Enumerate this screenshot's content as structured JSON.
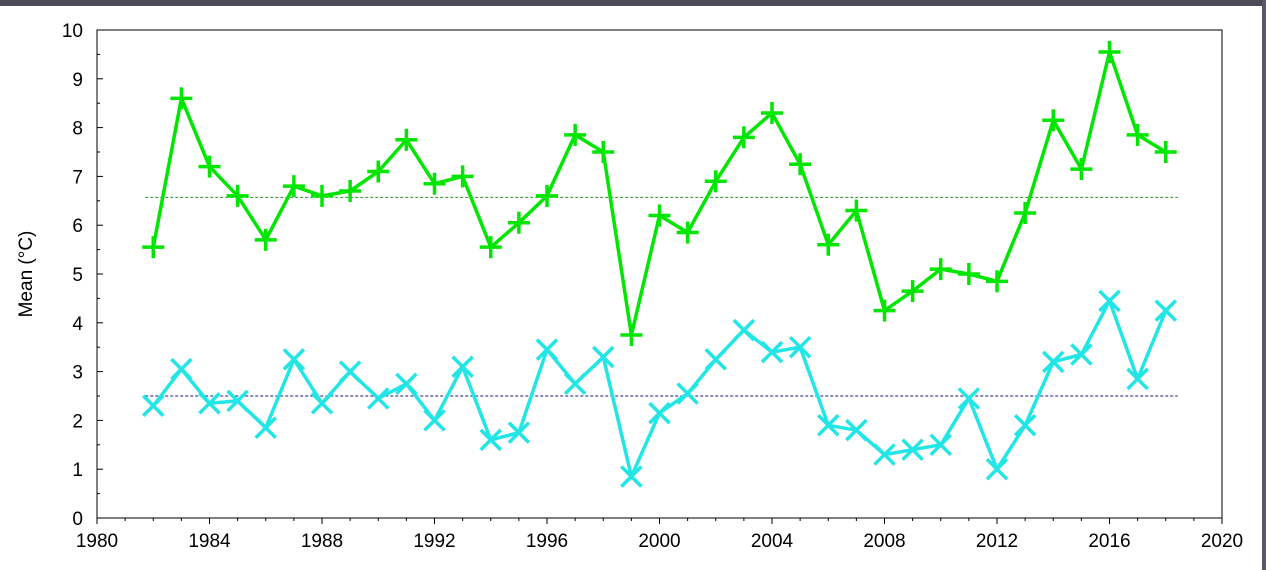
{
  "chart_data": {
    "type": "line",
    "title": "",
    "xlabel": "",
    "ylabel": "Mean (°C)",
    "xlim": [
      1980,
      2020
    ],
    "ylim": [
      0,
      10
    ],
    "x_ticks": [
      "1980",
      "1984",
      "1988",
      "1992",
      "1996",
      "2000",
      "2004",
      "2008",
      "2012",
      "2016",
      "2020"
    ],
    "y_ticks": [
      "0",
      "1",
      "2",
      "3",
      "4",
      "5",
      "6",
      "7",
      "8",
      "9",
      "10"
    ],
    "grid": false,
    "legend": "none",
    "x": [
      1982,
      1983,
      1984,
      1985,
      1986,
      1987,
      1988,
      1989,
      1990,
      1991,
      1992,
      1993,
      1994,
      1995,
      1996,
      1997,
      1998,
      1999,
      2000,
      2001,
      2002,
      2003,
      2004,
      2005,
      2006,
      2007,
      2008,
      2009,
      2010,
      2011,
      2012,
      2013,
      2014,
      2015,
      2016,
      2017,
      2018
    ],
    "series": [
      {
        "color": "#00e600",
        "marker": "plus",
        "values": [
          5.55,
          8.6,
          7.2,
          6.6,
          5.7,
          6.8,
          6.6,
          6.7,
          7.1,
          7.75,
          6.85,
          7.0,
          5.55,
          6.05,
          6.6,
          7.85,
          7.5,
          3.75,
          6.2,
          5.85,
          6.9,
          7.8,
          8.3,
          7.25,
          5.6,
          6.3,
          4.25,
          4.65,
          5.1,
          5.0,
          4.85,
          6.25,
          8.15,
          7.15,
          9.55,
          7.85,
          7.5
        ],
        "mean_line": 6.57,
        "mean_line_color": "#2e8b2e"
      },
      {
        "color": "#22e5e5",
        "marker": "x",
        "values": [
          2.3,
          3.05,
          2.35,
          2.4,
          1.85,
          3.25,
          2.35,
          3.0,
          2.45,
          2.75,
          2.0,
          3.1,
          1.6,
          1.75,
          3.45,
          2.75,
          3.3,
          0.85,
          2.15,
          2.55,
          3.25,
          3.85,
          3.4,
          3.5,
          1.9,
          1.8,
          1.3,
          1.4,
          1.5,
          2.45,
          1.0,
          1.9,
          3.2,
          3.35,
          4.45,
          2.85,
          4.25
        ],
        "mean_line": 2.5,
        "mean_line_color": "#1a1a80"
      }
    ]
  }
}
